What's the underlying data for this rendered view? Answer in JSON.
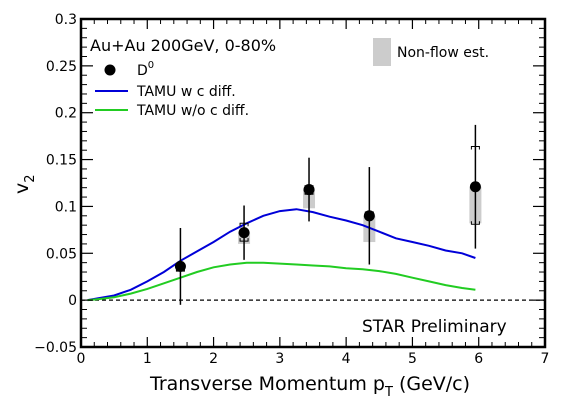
{
  "chart_data": {
    "type": "scatter",
    "title": "",
    "xlabel": "Transverse Momentum p",
    "xlabel_subscript": "T",
    "xlabel_unit": "(GeV/c)",
    "ylabel": "v",
    "ylabel_subscript": "2",
    "xlim": [
      0,
      7
    ],
    "ylim": [
      -0.05,
      0.3
    ],
    "x_ticks": [
      0,
      1,
      2,
      3,
      4,
      5,
      6,
      7
    ],
    "x_tick_labels": [
      "0",
      "1",
      "2",
      "3",
      "4",
      "5",
      "6",
      "7"
    ],
    "y_ticks": [
      -0.05,
      0,
      0.05,
      0.1,
      0.15,
      0.2,
      0.25,
      0.3
    ],
    "y_tick_labels": [
      "−0.05",
      "0",
      "0.05",
      "0.1",
      "0.15",
      "0.2",
      "0.25",
      "0.3"
    ],
    "grid": false,
    "annotations": {
      "system": "Au+Au 200GeV, 0-80%",
      "preliminary": "STAR Preliminary"
    },
    "legend": {
      "data_label": "D",
      "data_label_superscript": "0",
      "model1_label": "TAMU w c diff.",
      "model2_label": "TAMU w/o c diff.",
      "nonflow_label": "Non-flow est.",
      "placement": "top"
    },
    "series": [
      {
        "name": "D0",
        "kind": "points",
        "color": "#000000",
        "x": [
          1.5,
          2.46,
          3.44,
          4.35,
          5.95
        ],
        "y": [
          0.036,
          0.072,
          0.118,
          0.09,
          0.121
        ],
        "stat_err": [
          0.041,
          0.029,
          0.034,
          0.052,
          0.066
        ],
        "syst_low": [
          0.031,
          0.063,
          0.113,
          0.087,
          0.081
        ],
        "syst_high": [
          0.038,
          0.082,
          0.122,
          0.094,
          0.164
        ],
        "nonflow_low": [
          null,
          0.06,
          0.098,
          0.062,
          0.082
        ],
        "nonflow_high": [
          null,
          0.072,
          0.118,
          0.09,
          0.121
        ]
      },
      {
        "name": "TAMU w c diff.",
        "kind": "line",
        "color": "#0000d8",
        "x": [
          0.1,
          0.25,
          0.5,
          0.75,
          1.0,
          1.25,
          1.5,
          1.75,
          2.0,
          2.25,
          2.5,
          2.75,
          3.0,
          3.25,
          3.5,
          3.75,
          4.0,
          4.25,
          4.5,
          4.75,
          5.0,
          5.25,
          5.5,
          5.75,
          5.95
        ],
        "y": [
          0.0,
          0.002,
          0.005,
          0.011,
          0.02,
          0.03,
          0.042,
          0.052,
          0.062,
          0.073,
          0.082,
          0.09,
          0.095,
          0.097,
          0.094,
          0.089,
          0.085,
          0.08,
          0.073,
          0.066,
          0.062,
          0.058,
          0.053,
          0.05,
          0.045
        ]
      },
      {
        "name": "TAMU w/o c diff.",
        "kind": "line",
        "color": "#22cc22",
        "x": [
          0.1,
          0.25,
          0.5,
          0.75,
          1.0,
          1.25,
          1.5,
          1.75,
          2.0,
          2.25,
          2.5,
          2.75,
          3.0,
          3.25,
          3.5,
          3.75,
          4.0,
          4.25,
          4.5,
          4.75,
          5.0,
          5.25,
          5.5,
          5.75,
          5.95
        ],
        "y": [
          0.0,
          0.001,
          0.003,
          0.007,
          0.012,
          0.018,
          0.024,
          0.03,
          0.035,
          0.038,
          0.04,
          0.04,
          0.039,
          0.038,
          0.037,
          0.036,
          0.034,
          0.033,
          0.031,
          0.028,
          0.024,
          0.02,
          0.016,
          0.013,
          0.011
        ]
      }
    ],
    "colors": {
      "nonflow_band": "#cccccc",
      "zero_line": "#000000"
    }
  }
}
